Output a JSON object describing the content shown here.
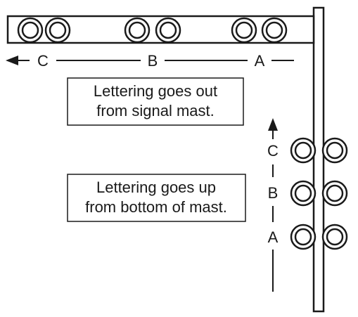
{
  "horizontal_labels": {
    "c": "C",
    "b": "B",
    "a": "A"
  },
  "vertical_labels": {
    "c": "C",
    "b": "B",
    "a": "A"
  },
  "note_horizontal": {
    "line1": "Lettering goes out",
    "line2": "from signal mast."
  },
  "note_vertical": {
    "line1": "Lettering goes up",
    "line2": "from bottom of mast."
  },
  "colors": {
    "stroke": "#1a1a1a",
    "background": "#ffffff"
  }
}
